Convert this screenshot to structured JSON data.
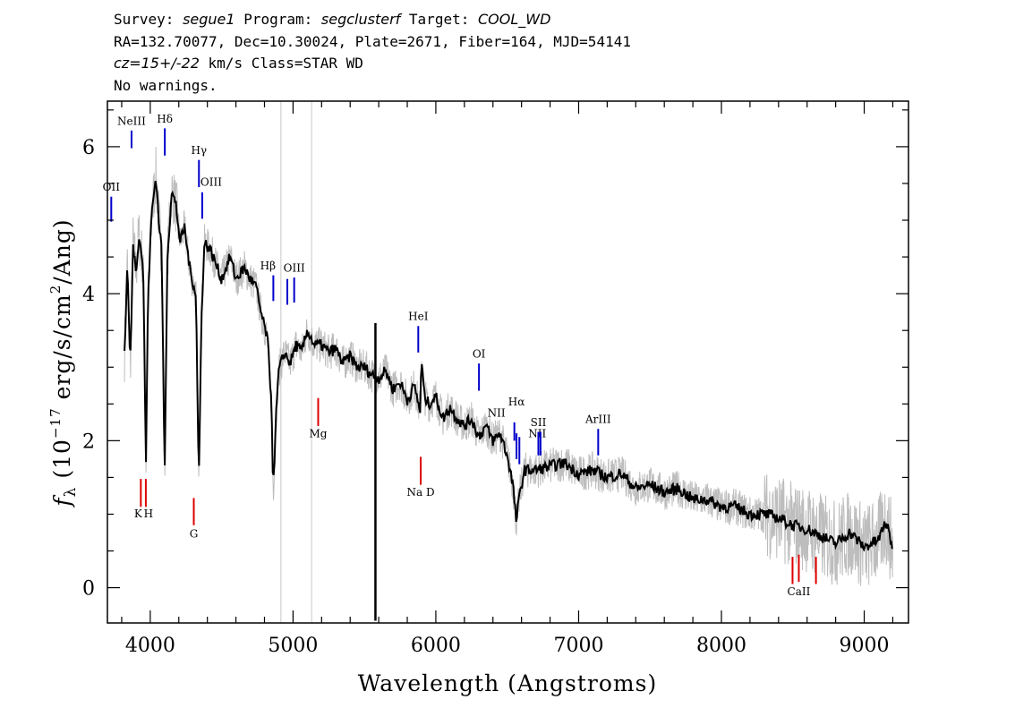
{
  "header": {
    "line1": {
      "survey_label": "Survey: ",
      "survey": "segue1",
      "program_label": " Program: ",
      "program": "segclusterf",
      "target_label": " Target: ",
      "target": "COOL_WD"
    },
    "line2": "RA=132.70077, Dec=10.30024, Plate=2671, Fiber=164, MJD=54141",
    "line3": {
      "cz_prefix": "cz=",
      "cz_value": "15+/-22",
      "cz_suffix": " km/s Class=STAR WD"
    },
    "line4": "No warnings."
  },
  "chart_data": {
    "type": "line",
    "xlabel": "Wavelength (Angstroms)",
    "ylabel_parts": {
      "f": "f",
      "sub": "λ",
      "open": " (10",
      "exp": "−17",
      "mid": " erg/s/cm",
      "exp2": "2",
      "close": "/Ang)"
    },
    "xlim": [
      3700,
      9310
    ],
    "ylim": [
      -0.48,
      6.62
    ],
    "xticks": [
      4000,
      5000,
      6000,
      7000,
      8000,
      9000
    ],
    "yticks": [
      0,
      2,
      4,
      6
    ],
    "x_minor_step": 200,
    "y_minor_step": 0.5,
    "colors": {
      "model": "#000000",
      "noisy": "#bdbdbd",
      "emission": "#0000cc",
      "absorption": "#dd0000",
      "bad_pixel": "#c8c8c8"
    },
    "bad_pixel_columns": [
      4915,
      5130
    ],
    "series": [
      {
        "role": "smoothed",
        "points": [
          [
            3820,
            3.2
          ],
          [
            3840,
            4.4
          ],
          [
            3860,
            3.0
          ],
          [
            3880,
            4.7
          ],
          [
            3900,
            4.3
          ],
          [
            3920,
            4.8
          ],
          [
            3950,
            4.4
          ],
          [
            3970,
            1.7
          ],
          [
            3985,
            4.0
          ],
          [
            4010,
            5.1
          ],
          [
            4040,
            5.6
          ],
          [
            4060,
            5.0
          ],
          [
            4080,
            4.6
          ],
          [
            4101,
            1.5
          ],
          [
            4120,
            4.5
          ],
          [
            4150,
            5.4
          ],
          [
            4180,
            5.2
          ],
          [
            4210,
            4.7
          ],
          [
            4240,
            4.9
          ],
          [
            4280,
            4.3
          ],
          [
            4320,
            4.0
          ],
          [
            4340,
            1.4
          ],
          [
            4360,
            3.8
          ],
          [
            4380,
            4.7
          ],
          [
            4420,
            4.6
          ],
          [
            4460,
            4.4
          ],
          [
            4500,
            4.2
          ],
          [
            4560,
            4.5
          ],
          [
            4600,
            4.2
          ],
          [
            4660,
            4.35
          ],
          [
            4700,
            4.2
          ],
          [
            4740,
            4.1
          ],
          [
            4780,
            3.7
          ],
          [
            4820,
            3.4
          ],
          [
            4850,
            2.5
          ],
          [
            4861,
            1.3
          ],
          [
            4880,
            2.3
          ],
          [
            4900,
            2.95
          ],
          [
            4940,
            3.2
          ],
          [
            4980,
            3.05
          ],
          [
            5020,
            3.3
          ],
          [
            5060,
            3.2
          ],
          [
            5100,
            3.5
          ],
          [
            5150,
            3.3
          ],
          [
            5200,
            3.3
          ],
          [
            5250,
            3.2
          ],
          [
            5300,
            3.25
          ],
          [
            5350,
            3.05
          ],
          [
            5400,
            3.15
          ],
          [
            5450,
            3.0
          ],
          [
            5500,
            3.0
          ],
          [
            5550,
            2.9
          ],
          [
            5600,
            2.85
          ],
          [
            5650,
            2.95
          ],
          [
            5700,
            2.7
          ],
          [
            5750,
            2.8
          ],
          [
            5800,
            2.55
          ],
          [
            5850,
            2.75
          ],
          [
            5890,
            2.4
          ],
          [
            5900,
            3.1
          ],
          [
            5920,
            2.6
          ],
          [
            5950,
            2.5
          ],
          [
            6000,
            2.6
          ],
          [
            6050,
            2.3
          ],
          [
            6100,
            2.45
          ],
          [
            6150,
            2.3
          ],
          [
            6200,
            2.2
          ],
          [
            6250,
            2.3
          ],
          [
            6300,
            2.05
          ],
          [
            6350,
            2.2
          ],
          [
            6400,
            2.0
          ],
          [
            6450,
            2.1
          ],
          [
            6500,
            1.8
          ],
          [
            6540,
            1.4
          ],
          [
            6563,
            0.9
          ],
          [
            6590,
            1.3
          ],
          [
            6620,
            1.6
          ],
          [
            6700,
            1.6
          ],
          [
            6800,
            1.65
          ],
          [
            6900,
            1.7
          ],
          [
            7000,
            1.55
          ],
          [
            7100,
            1.6
          ],
          [
            7200,
            1.5
          ],
          [
            7300,
            1.55
          ],
          [
            7400,
            1.35
          ],
          [
            7500,
            1.4
          ],
          [
            7600,
            1.3
          ],
          [
            7700,
            1.35
          ],
          [
            7800,
            1.2
          ],
          [
            7900,
            1.2
          ],
          [
            8000,
            1.1
          ],
          [
            8100,
            1.1
          ],
          [
            8200,
            1.0
          ],
          [
            8300,
            1.0
          ],
          [
            8400,
            0.95
          ],
          [
            8500,
            0.85
          ],
          [
            8600,
            0.8
          ],
          [
            8700,
            0.7
          ],
          [
            8800,
            0.6
          ],
          [
            8900,
            0.75
          ],
          [
            9000,
            0.55
          ],
          [
            9100,
            0.65
          ],
          [
            9150,
            0.9
          ],
          [
            9200,
            0.55
          ]
        ]
      },
      {
        "role": "spike",
        "points": [
          [
            5577,
            -0.45
          ],
          [
            5577,
            3.6
          ]
        ]
      }
    ],
    "lines": [
      {
        "label": "NeIII",
        "x": 3869,
        "y1": 5.98,
        "y2": 6.22,
        "label_y": 6.3,
        "color": "emission",
        "label_dx": 0
      },
      {
        "label": "OII",
        "x": 3727,
        "y1": 4.98,
        "y2": 5.32,
        "label_y": 5.4,
        "color": "emission",
        "label_dx": 0
      },
      {
        "label": "Hδ",
        "x": 4102,
        "y1": 5.88,
        "y2": 6.25,
        "label_y": 6.33,
        "color": "emission",
        "label_dx": 0
      },
      {
        "label": "Hγ",
        "x": 4341,
        "y1": 5.45,
        "y2": 5.82,
        "label_y": 5.9,
        "color": "emission",
        "label_dx": 0
      },
      {
        "label": "OIII",
        "x": 4364,
        "y1": 5.02,
        "y2": 5.38,
        "label_y": 5.47,
        "color": "emission",
        "label_dx": 10
      },
      {
        "label": "Hβ",
        "x": 4862,
        "y1": 3.9,
        "y2": 4.25,
        "label_y": 4.33,
        "color": "emission",
        "label_dx": -6
      },
      {
        "label": "",
        "x": 4960,
        "y1": 3.85,
        "y2": 4.2,
        "label_y": 4.2,
        "color": "emission",
        "label_dx": 0
      },
      {
        "label": "OIII",
        "x": 5008,
        "y1": 3.88,
        "y2": 4.22,
        "label_y": 4.3,
        "color": "emission",
        "label_dx": 0
      },
      {
        "label": "HeI",
        "x": 5877,
        "y1": 3.2,
        "y2": 3.56,
        "label_y": 3.64,
        "color": "emission",
        "label_dx": 0
      },
      {
        "label": "OI",
        "x": 6302,
        "y1": 2.68,
        "y2": 3.05,
        "label_y": 3.13,
        "color": "emission",
        "label_dx": 0
      },
      {
        "label": "NII",
        "x": 6550,
        "y1": 2.0,
        "y2": 2.25,
        "label_y": 2.33,
        "color": "emission",
        "label_dx": -20
      },
      {
        "label": "Hα",
        "x": 6565,
        "y1": 1.75,
        "y2": 2.1,
        "label_y": 2.48,
        "color": "emission",
        "label_dx": 0
      },
      {
        "label": "NII",
        "x": 6585,
        "y1": 1.68,
        "y2": 2.05,
        "label_y": 2.05,
        "color": "emission",
        "label_dx": 20
      },
      {
        "label": "SII",
        "x": 6718,
        "y1": 1.8,
        "y2": 2.12,
        "label_y": 2.2,
        "color": "emission",
        "label_dx": 0
      },
      {
        "label": "",
        "x": 6733,
        "y1": 1.8,
        "y2": 2.12,
        "label_y": 2.12,
        "color": "emission",
        "label_dx": 0
      },
      {
        "label": "ArIII",
        "x": 7137,
        "y1": 1.8,
        "y2": 2.16,
        "label_y": 2.24,
        "color": "emission",
        "label_dx": 0
      },
      {
        "label": "K",
        "x": 3934,
        "y1": 1.1,
        "y2": 1.48,
        "label_y": 0.96,
        "color": "absorption",
        "label_dx": -3
      },
      {
        "label": "H",
        "x": 3969,
        "y1": 1.1,
        "y2": 1.48,
        "label_y": 0.96,
        "color": "absorption",
        "label_dx": 3
      },
      {
        "label": "G",
        "x": 4305,
        "y1": 0.85,
        "y2": 1.22,
        "label_y": 0.68,
        "color": "absorption",
        "label_dx": 0
      },
      {
        "label": "Mg",
        "x": 5176,
        "y1": 2.2,
        "y2": 2.58,
        "label_y": 2.05,
        "color": "absorption",
        "label_dx": 0
      },
      {
        "label": "Na D",
        "x": 5894,
        "y1": 1.4,
        "y2": 1.78,
        "label_y": 1.25,
        "color": "absorption",
        "label_dx": 0
      },
      {
        "label": "",
        "x": 8498,
        "y1": 0.05,
        "y2": 0.42,
        "label_y": 0.42,
        "color": "absorption",
        "label_dx": 0
      },
      {
        "label": "CaII",
        "x": 8542,
        "y1": 0.08,
        "y2": 0.45,
        "label_y": -0.1,
        "color": "absorption",
        "label_dx": 0
      },
      {
        "label": "",
        "x": 8662,
        "y1": 0.05,
        "y2": 0.42,
        "label_y": 0.42,
        "color": "absorption",
        "label_dx": 0
      }
    ]
  }
}
